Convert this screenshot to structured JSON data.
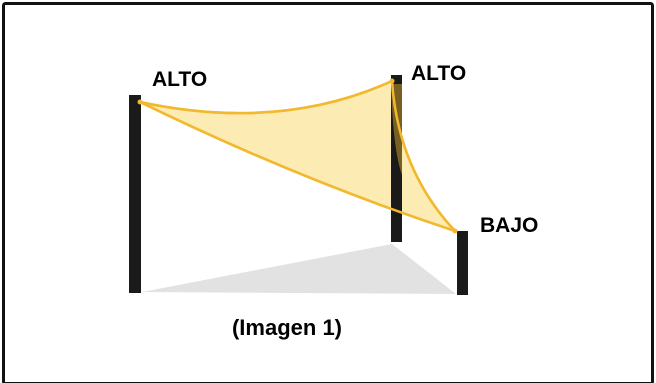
{
  "labels": {
    "left_post": "ALTO",
    "middle_post": "ALTO",
    "right_post": "BAJO",
    "caption": "(Imagen 1)"
  },
  "colors": {
    "background": "#ffffff",
    "border": "#111111",
    "post": "#1a1a1a",
    "sail_fill": "#fbe7a4",
    "sail_edge": "#f2b92e",
    "shadow": "#e2e2e2"
  }
}
